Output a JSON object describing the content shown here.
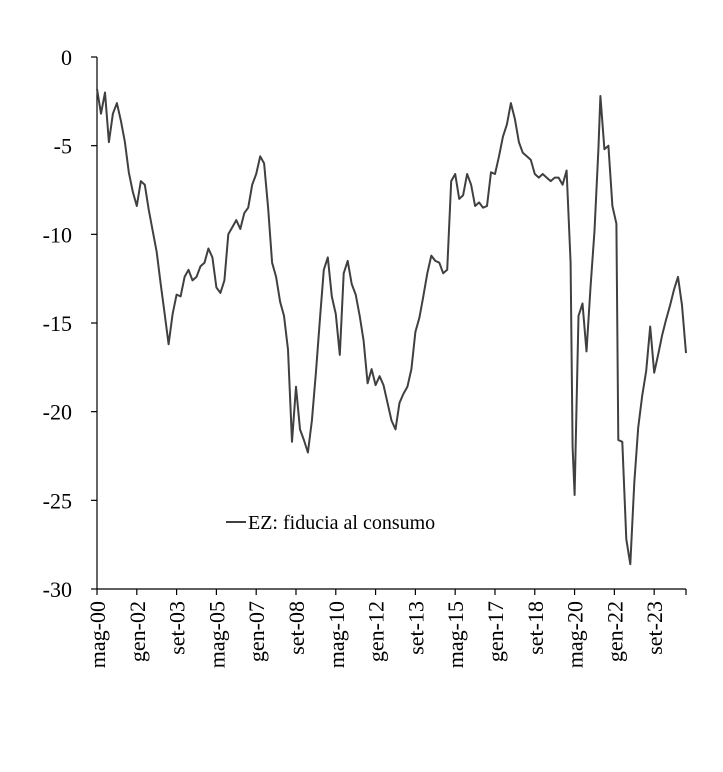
{
  "chart_data": {
    "type": "line",
    "title": "",
    "xlabel": "",
    "ylabel": "",
    "ylim": [
      -30,
      0
    ],
    "yticks": [
      0,
      -5,
      -10,
      -15,
      -20,
      -25,
      -30
    ],
    "xlim": [
      "2000-05",
      "2025-01"
    ],
    "xticks": [
      {
        "date": "2000-05",
        "label": "mag-00"
      },
      {
        "date": "2002-01",
        "label": "gen-02"
      },
      {
        "date": "2003-09",
        "label": "set-03"
      },
      {
        "date": "2005-05",
        "label": "mag-05"
      },
      {
        "date": "2007-01",
        "label": "gen-07"
      },
      {
        "date": "2008-09",
        "label": "set-08"
      },
      {
        "date": "2010-05",
        "label": "mag-10"
      },
      {
        "date": "2012-01",
        "label": "gen-12"
      },
      {
        "date": "2013-09",
        "label": "set-13"
      },
      {
        "date": "2015-05",
        "label": "mag-15"
      },
      {
        "date": "2017-01",
        "label": "gen-17"
      },
      {
        "date": "2018-09",
        "label": "set-18"
      },
      {
        "date": "2020-05",
        "label": "mag-20"
      },
      {
        "date": "2022-01",
        "label": "gen-22"
      },
      {
        "date": "2023-09",
        "label": "set-23"
      }
    ],
    "grid": false,
    "legend_position": "bottom-center",
    "line_color": "#404040",
    "series": [
      {
        "name": "EZ: fiducia al consumo",
        "points": [
          [
            "2000-05",
            -1.8
          ],
          [
            "2000-07",
            -3.2
          ],
          [
            "2000-09",
            -2.0
          ],
          [
            "2000-11",
            -4.8
          ],
          [
            "2001-01",
            -3.2
          ],
          [
            "2001-03",
            -2.6
          ],
          [
            "2001-05",
            -3.6
          ],
          [
            "2001-07",
            -4.8
          ],
          [
            "2001-09",
            -6.5
          ],
          [
            "2001-11",
            -7.6
          ],
          [
            "2002-01",
            -8.4
          ],
          [
            "2002-03",
            -7.0
          ],
          [
            "2002-05",
            -7.2
          ],
          [
            "2002-07",
            -8.6
          ],
          [
            "2002-09",
            -9.8
          ],
          [
            "2002-11",
            -11.0
          ],
          [
            "2003-01",
            -12.8
          ],
          [
            "2003-03",
            -14.5
          ],
          [
            "2003-05",
            -16.2
          ],
          [
            "2003-07",
            -14.5
          ],
          [
            "2003-09",
            -13.4
          ],
          [
            "2003-11",
            -13.5
          ],
          [
            "2004-01",
            -12.4
          ],
          [
            "2004-03",
            -12.0
          ],
          [
            "2004-05",
            -12.6
          ],
          [
            "2004-07",
            -12.4
          ],
          [
            "2004-09",
            -11.8
          ],
          [
            "2004-11",
            -11.6
          ],
          [
            "2005-01",
            -10.8
          ],
          [
            "2005-03",
            -11.3
          ],
          [
            "2005-05",
            -13.0
          ],
          [
            "2005-07",
            -13.3
          ],
          [
            "2005-09",
            -12.6
          ],
          [
            "2005-11",
            -10.0
          ],
          [
            "2006-01",
            -9.6
          ],
          [
            "2006-03",
            -9.2
          ],
          [
            "2006-05",
            -9.7
          ],
          [
            "2006-07",
            -8.8
          ],
          [
            "2006-09",
            -8.5
          ],
          [
            "2006-11",
            -7.2
          ],
          [
            "2007-01",
            -6.6
          ],
          [
            "2007-03",
            -5.6
          ],
          [
            "2007-05",
            -6.0
          ],
          [
            "2007-07",
            -8.5
          ],
          [
            "2007-09",
            -11.6
          ],
          [
            "2007-11",
            -12.4
          ],
          [
            "2008-01",
            -13.8
          ],
          [
            "2008-03",
            -14.6
          ],
          [
            "2008-05",
            -16.5
          ],
          [
            "2008-07",
            -21.7
          ],
          [
            "2008-09",
            -18.6
          ],
          [
            "2008-11",
            -21.0
          ],
          [
            "2009-01",
            -21.6
          ],
          [
            "2009-03",
            -22.3
          ],
          [
            "2009-05",
            -20.5
          ],
          [
            "2009-07",
            -17.8
          ],
          [
            "2009-09",
            -14.8
          ],
          [
            "2009-11",
            -12.0
          ],
          [
            "2010-01",
            -11.3
          ],
          [
            "2010-03",
            -13.5
          ],
          [
            "2010-05",
            -14.5
          ],
          [
            "2010-07",
            -16.8
          ],
          [
            "2010-09",
            -12.2
          ],
          [
            "2010-11",
            -11.5
          ],
          [
            "2011-01",
            -12.8
          ],
          [
            "2011-03",
            -13.4
          ],
          [
            "2011-05",
            -14.6
          ],
          [
            "2011-07",
            -16.0
          ],
          [
            "2011-09",
            -18.4
          ],
          [
            "2011-11",
            -17.6
          ],
          [
            "2012-01",
            -18.5
          ],
          [
            "2012-03",
            -18.0
          ],
          [
            "2012-05",
            -18.5
          ],
          [
            "2012-07",
            -19.5
          ],
          [
            "2012-09",
            -20.5
          ],
          [
            "2012-11",
            -21.0
          ],
          [
            "2013-01",
            -19.5
          ],
          [
            "2013-03",
            -19.0
          ],
          [
            "2013-05",
            -18.6
          ],
          [
            "2013-07",
            -17.6
          ],
          [
            "2013-09",
            -15.5
          ],
          [
            "2013-11",
            -14.7
          ],
          [
            "2014-01",
            -13.5
          ],
          [
            "2014-03",
            -12.2
          ],
          [
            "2014-05",
            -11.2
          ],
          [
            "2014-07",
            -11.5
          ],
          [
            "2014-09",
            -11.6
          ],
          [
            "2014-11",
            -12.2
          ],
          [
            "2015-01",
            -12.0
          ],
          [
            "2015-03",
            -7.0
          ],
          [
            "2015-05",
            -6.6
          ],
          [
            "2015-07",
            -8.0
          ],
          [
            "2015-09",
            -7.8
          ],
          [
            "2015-11",
            -6.6
          ],
          [
            "2016-01",
            -7.2
          ],
          [
            "2016-03",
            -8.4
          ],
          [
            "2016-05",
            -8.2
          ],
          [
            "2016-07",
            -8.5
          ],
          [
            "2016-09",
            -8.4
          ],
          [
            "2016-11",
            -6.5
          ],
          [
            "2017-01",
            -6.6
          ],
          [
            "2017-03",
            -5.6
          ],
          [
            "2017-05",
            -4.5
          ],
          [
            "2017-07",
            -3.8
          ],
          [
            "2017-09",
            -2.6
          ],
          [
            "2017-11",
            -3.5
          ],
          [
            "2018-01",
            -4.8
          ],
          [
            "2018-03",
            -5.4
          ],
          [
            "2018-05",
            -5.6
          ],
          [
            "2018-07",
            -5.8
          ],
          [
            "2018-09",
            -6.6
          ],
          [
            "2018-11",
            -6.8
          ],
          [
            "2019-01",
            -6.6
          ],
          [
            "2019-03",
            -6.8
          ],
          [
            "2019-05",
            -7.0
          ],
          [
            "2019-07",
            -6.8
          ],
          [
            "2019-09",
            -6.8
          ],
          [
            "2019-11",
            -7.2
          ],
          [
            "2020-01",
            -6.4
          ],
          [
            "2020-03",
            -11.6
          ],
          [
            "2020-04",
            -22.0
          ],
          [
            "2020-05",
            -24.7
          ],
          [
            "2020-07",
            -14.6
          ],
          [
            "2020-09",
            -13.9
          ],
          [
            "2020-11",
            -16.6
          ],
          [
            "2021-01",
            -13.0
          ],
          [
            "2021-03",
            -9.8
          ],
          [
            "2021-05",
            -5.2
          ],
          [
            "2021-06",
            -2.2
          ],
          [
            "2021-08",
            -5.2
          ],
          [
            "2021-10",
            -5.0
          ],
          [
            "2021-12",
            -8.4
          ],
          [
            "2022-02",
            -9.4
          ],
          [
            "2022-03",
            -21.6
          ],
          [
            "2022-05",
            -21.7
          ],
          [
            "2022-07",
            -27.2
          ],
          [
            "2022-09",
            -28.6
          ],
          [
            "2022-11",
            -24.0
          ],
          [
            "2023-01",
            -20.9
          ],
          [
            "2023-03",
            -19.1
          ],
          [
            "2023-05",
            -17.7
          ],
          [
            "2023-07",
            -15.2
          ],
          [
            "2023-09",
            -17.8
          ],
          [
            "2023-11",
            -16.8
          ],
          [
            "2024-01",
            -15.7
          ],
          [
            "2024-03",
            -14.8
          ],
          [
            "2024-05",
            -14.0
          ],
          [
            "2024-07",
            -13.1
          ],
          [
            "2024-09",
            -12.4
          ],
          [
            "2024-11",
            -14.0
          ],
          [
            "2025-01",
            -16.7
          ]
        ]
      }
    ]
  }
}
